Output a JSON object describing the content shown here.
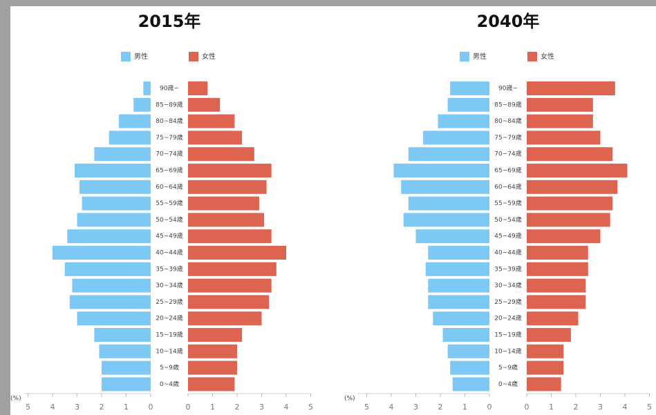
{
  "chart_data": [
    {
      "type": "pyramid",
      "title": "2015年",
      "x_label": "(%)",
      "categories": [
        "90歳~",
        "85~89歳",
        "80~84歳",
        "75~79歳",
        "70~74歳",
        "65~69歳",
        "60~64歳",
        "55~59歳",
        "50~54歳",
        "45~49歳",
        "40~44歳",
        "35~39歳",
        "30~34歳",
        "25~29歳",
        "20~24歳",
        "15~19歳",
        "10~14歳",
        "5~9歳",
        "0~4歳"
      ],
      "series": [
        {
          "name": "男性",
          "color": "#7ec8f5",
          "values": [
            0.3,
            0.7,
            1.3,
            1.7,
            2.3,
            3.1,
            2.9,
            2.8,
            3.0,
            3.4,
            4.0,
            3.5,
            3.2,
            3.3,
            3.0,
            2.3,
            2.1,
            2.0,
            2.0
          ]
        },
        {
          "name": "女性",
          "color": "#dc6450",
          "values": [
            0.8,
            1.3,
            1.9,
            2.2,
            2.7,
            3.4,
            3.2,
            2.9,
            3.1,
            3.4,
            4.0,
            3.6,
            3.4,
            3.3,
            3.0,
            2.2,
            2.0,
            2.0,
            1.9
          ]
        }
      ],
      "xlim": [
        0,
        5
      ],
      "xticks": [
        0,
        1,
        2,
        3,
        4,
        5
      ]
    },
    {
      "type": "pyramid",
      "title": "2040年",
      "x_label": "(%)",
      "categories": [
        "90歳~",
        "85~89歳",
        "80~84歳",
        "75~79歳",
        "70~74歳",
        "65~69歳",
        "60~64歳",
        "55~59歳",
        "50~54歳",
        "45~49歳",
        "40~44歳",
        "35~39歳",
        "30~34歳",
        "25~29歳",
        "20~24歳",
        "15~19歳",
        "10~14歳",
        "5~9歳",
        "0~4歳"
      ],
      "series": [
        {
          "name": "男性",
          "color": "#7ec8f5",
          "values": [
            1.6,
            1.7,
            2.1,
            2.7,
            3.3,
            3.9,
            3.6,
            3.3,
            3.5,
            3.0,
            2.5,
            2.6,
            2.5,
            2.5,
            2.3,
            1.9,
            1.7,
            1.6,
            1.5
          ]
        },
        {
          "name": "女性",
          "color": "#dc6450",
          "values": [
            3.6,
            2.7,
            2.7,
            3.0,
            3.5,
            4.1,
            3.7,
            3.5,
            3.4,
            3.0,
            2.5,
            2.5,
            2.4,
            2.4,
            2.1,
            1.8,
            1.5,
            1.5,
            1.4
          ]
        }
      ],
      "xlim": [
        0,
        5
      ],
      "xticks": [
        0,
        1,
        2,
        3,
        4,
        5
      ]
    }
  ]
}
